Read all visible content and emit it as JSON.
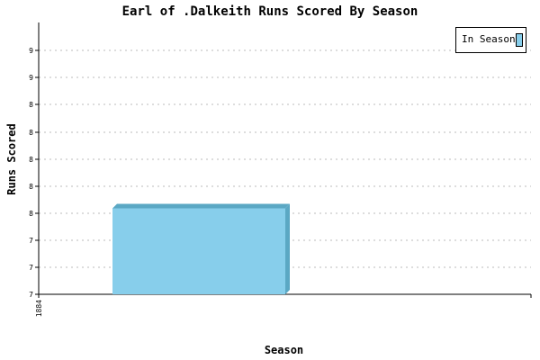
{
  "chart_data": {
    "type": "bar",
    "title": "Earl of .Dalkeith Runs Scored By Season",
    "xlabel": "Season",
    "ylabel": "Runs Scored",
    "categories": [
      "1884"
    ],
    "series": [
      {
        "name": "In Season",
        "values": [
          8
        ]
      }
    ],
    "ytick_labels": [
      "7",
      "7",
      "7",
      "8",
      "8",
      "8",
      "8",
      "8",
      "9",
      "9"
    ],
    "grid": true,
    "legend_position": "top-right",
    "colors": {
      "bar": "#87ceeb",
      "bar_side": "#5ba8c4",
      "grid": "#bbbbbb",
      "axis": "#000000"
    }
  }
}
